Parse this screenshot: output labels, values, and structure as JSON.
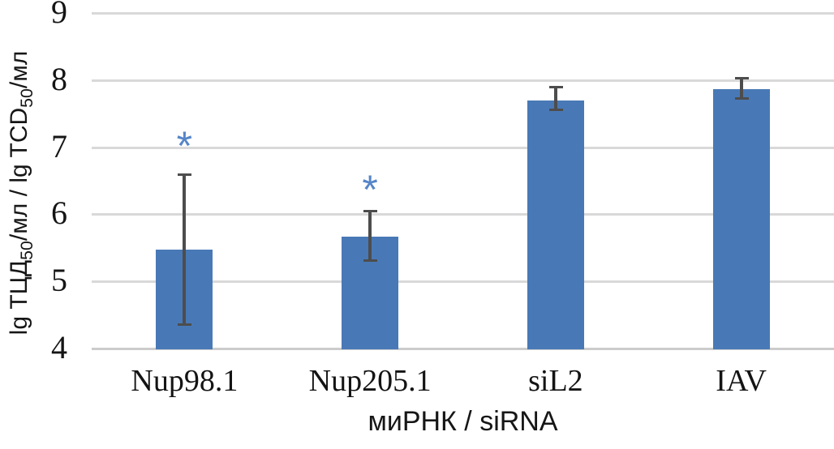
{
  "chart_data": {
    "type": "bar",
    "title": "",
    "categories": [
      "Nup98.1",
      "Nup205.1",
      "siL2",
      "IAV"
    ],
    "values": [
      5.47,
      5.67,
      7.7,
      7.87
    ],
    "error_high": [
      6.6,
      6.05,
      7.9,
      8.03
    ],
    "error_low": [
      4.35,
      5.3,
      7.55,
      7.72
    ],
    "significance": [
      {
        "label": "*",
        "value": 7.1
      },
      {
        "label": "*",
        "value": 6.45
      },
      null,
      null
    ],
    "xlabel": "миРНК / siRNA",
    "ylabel": "lg ТЦД50/мл / lg TCD50/мл",
    "ylabel_parts": {
      "pre": "lg ТЦД",
      "sub1": "50",
      "mid": "/мл / lg TCD",
      "sub2": "50",
      "post": "/мл"
    },
    "yticks": [
      9,
      8,
      7,
      6,
      5,
      4
    ],
    "ylim": [
      4,
      9
    ],
    "grid": true,
    "legend_position": "none",
    "bar_color": "#4879b6",
    "error_bar_color": "#4d4d4d",
    "gridline_color": "#d9d9d9",
    "asterisk_color": "#5585c8"
  }
}
